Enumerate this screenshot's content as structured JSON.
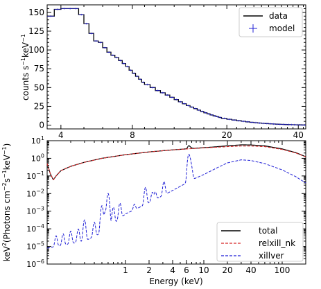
{
  "chart_data": [
    {
      "type": "line",
      "xscale": "log",
      "xlim": [
        3.5,
        43
      ],
      "ylim": [
        -5,
        160
      ],
      "ylabel": "counts s",
      "ylabel_sup": "−1",
      "ylabel_mid": "keV",
      "ylabel_sup2": "−1",
      "x_ticks": [
        4,
        8,
        20,
        40
      ],
      "x_tick_labels": [
        "4",
        "8",
        "20",
        "40"
      ],
      "y_ticks": [
        0,
        25,
        50,
        75,
        100,
        125,
        150
      ],
      "y_tick_labels": [
        "0",
        "25",
        "50",
        "75",
        "100",
        "125",
        "150"
      ],
      "legend_position": "top-right",
      "series": [
        {
          "name": "data",
          "color": "#000000",
          "style": "step"
        },
        {
          "name": "model",
          "color": "#1f1fd6",
          "style": "cross"
        }
      ],
      "bin_edges": [
        3.5,
        3.75,
        4.0,
        4.25,
        4.5,
        4.75,
        5.0,
        5.25,
        5.5,
        5.75,
        6.0,
        6.25,
        6.5,
        6.75,
        7.0,
        7.25,
        7.5,
        7.75,
        8.0,
        8.25,
        8.5,
        8.75,
        9.0,
        9.5,
        10.0,
        10.5,
        11.0,
        11.5,
        12.0,
        12.5,
        13.0,
        13.5,
        14.0,
        14.5,
        15.0,
        15.5,
        16.0,
        16.5,
        17.0,
        17.5,
        18.0,
        18.5,
        19.0,
        20.0,
        21.0,
        22.0,
        23.0,
        24.0,
        25.0,
        26.0,
        27.0,
        28.0,
        29.0,
        30.0,
        31.0,
        32.0,
        33.0,
        34.0,
        35.0,
        36.0,
        37.0,
        38.0,
        39.0,
        40.0,
        41.0,
        42.0,
        43.0
      ],
      "counts": [
        145,
        154,
        155,
        155,
        155,
        147,
        135,
        122,
        112,
        110,
        103,
        97,
        93,
        90,
        86,
        82,
        78,
        73,
        69,
        65,
        61,
        57,
        54,
        50,
        46,
        43,
        40,
        37,
        34,
        31,
        28.5,
        26,
        24,
        22,
        20,
        18.2,
        16.5,
        15,
        13.6,
        12.3,
        11.2,
        10.2,
        9.0,
        7.8,
        6.8,
        5.9,
        5.1,
        4.4,
        3.8,
        3.3,
        2.8,
        2.4,
        2.1,
        1.8,
        1.5,
        1.3,
        1.1,
        0.95,
        0.8,
        0.7,
        0.6,
        0.5,
        0.42,
        0.35,
        0.3,
        0.25
      ]
    },
    {
      "type": "line",
      "xscale": "log",
      "yscale": "log",
      "xlim": [
        0.1,
        200
      ],
      "ylim": [
        1e-06,
        10
      ],
      "xlabel": "Energy (keV)",
      "ylabel_parts": [
        "keV",
        "2",
        "(Photons cm",
        "−2",
        "s",
        "−1",
        "keV",
        "−1",
        ")"
      ],
      "x_ticks": [
        1,
        2,
        4,
        6,
        10,
        20,
        40,
        100
      ],
      "x_tick_labels": [
        "1",
        "2",
        "4",
        "6",
        "10",
        "20",
        "40",
        "100"
      ],
      "y_tick_mantissa": "10",
      "y_ticks": [
        -6,
        -5,
        -4,
        -3,
        -2,
        -1,
        0,
        1
      ],
      "y_tick_exponents": [
        "−6",
        "−5",
        "−4",
        "−3",
        "−2",
        "−1",
        "0",
        "1"
      ],
      "legend_position": "bottom-right",
      "series": [
        {
          "name": "total",
          "color": "#000000",
          "dash": "solid"
        },
        {
          "name": "relxill_nk",
          "color": "#d62728",
          "dash": "dashed"
        },
        {
          "name": "xillver",
          "color": "#1f1fd6",
          "dash": "dashed"
        }
      ],
      "relxill_points": [
        [
          0.1,
          0.5
        ],
        [
          0.11,
          0.13
        ],
        [
          0.12,
          0.06
        ],
        [
          0.13,
          0.1
        ],
        [
          0.15,
          0.2
        ],
        [
          0.2,
          0.35
        ],
        [
          0.3,
          0.6
        ],
        [
          0.5,
          1.0
        ],
        [
          1,
          1.6
        ],
        [
          2,
          2.3
        ],
        [
          4,
          3.0
        ],
        [
          6,
          3.4
        ],
        [
          10,
          3.9
        ],
        [
          20,
          4.6
        ],
        [
          30,
          5.0
        ],
        [
          40,
          5.0
        ],
        [
          60,
          4.6
        ],
        [
          100,
          3.2
        ],
        [
          150,
          2.0
        ],
        [
          200,
          1.2
        ]
      ],
      "xillver_points": [
        [
          0.1,
          8e-06
        ],
        [
          0.3,
          2e-05
        ],
        [
          0.5,
          6e-05
        ],
        [
          0.8,
          0.0003
        ],
        [
          1,
          0.0007
        ],
        [
          2,
          0.003
        ],
        [
          4,
          0.015
        ],
        [
          6,
          0.04
        ],
        [
          7,
          0.06
        ],
        [
          10,
          0.12
        ],
        [
          15,
          0.3
        ],
        [
          20,
          0.55
        ],
        [
          30,
          0.82
        ],
        [
          40,
          0.75
        ],
        [
          60,
          0.5
        ],
        [
          100,
          0.22
        ],
        [
          150,
          0.09
        ],
        [
          200,
          0.04
        ]
      ],
      "xillver_lines": [
        [
          0.13,
          3e-05
        ],
        [
          0.16,
          4e-05
        ],
        [
          0.2,
          6e-05
        ],
        [
          0.25,
          8e-05
        ],
        [
          0.3,
          0.0003
        ],
        [
          0.4,
          0.0002
        ],
        [
          0.5,
          0.002
        ],
        [
          0.55,
          0.0008
        ],
        [
          0.6,
          0.01
        ],
        [
          0.7,
          0.0015
        ],
        [
          0.85,
          0.0025
        ],
        [
          1.3,
          0.0013
        ],
        [
          1.8,
          0.02
        ],
        [
          2.2,
          0.008
        ],
        [
          2.4,
          0.008
        ],
        [
          3.1,
          0.04
        ],
        [
          6.4,
          1.5
        ],
        [
          6.7,
          0.6
        ],
        [
          7.0,
          0.15
        ]
      ]
    }
  ]
}
